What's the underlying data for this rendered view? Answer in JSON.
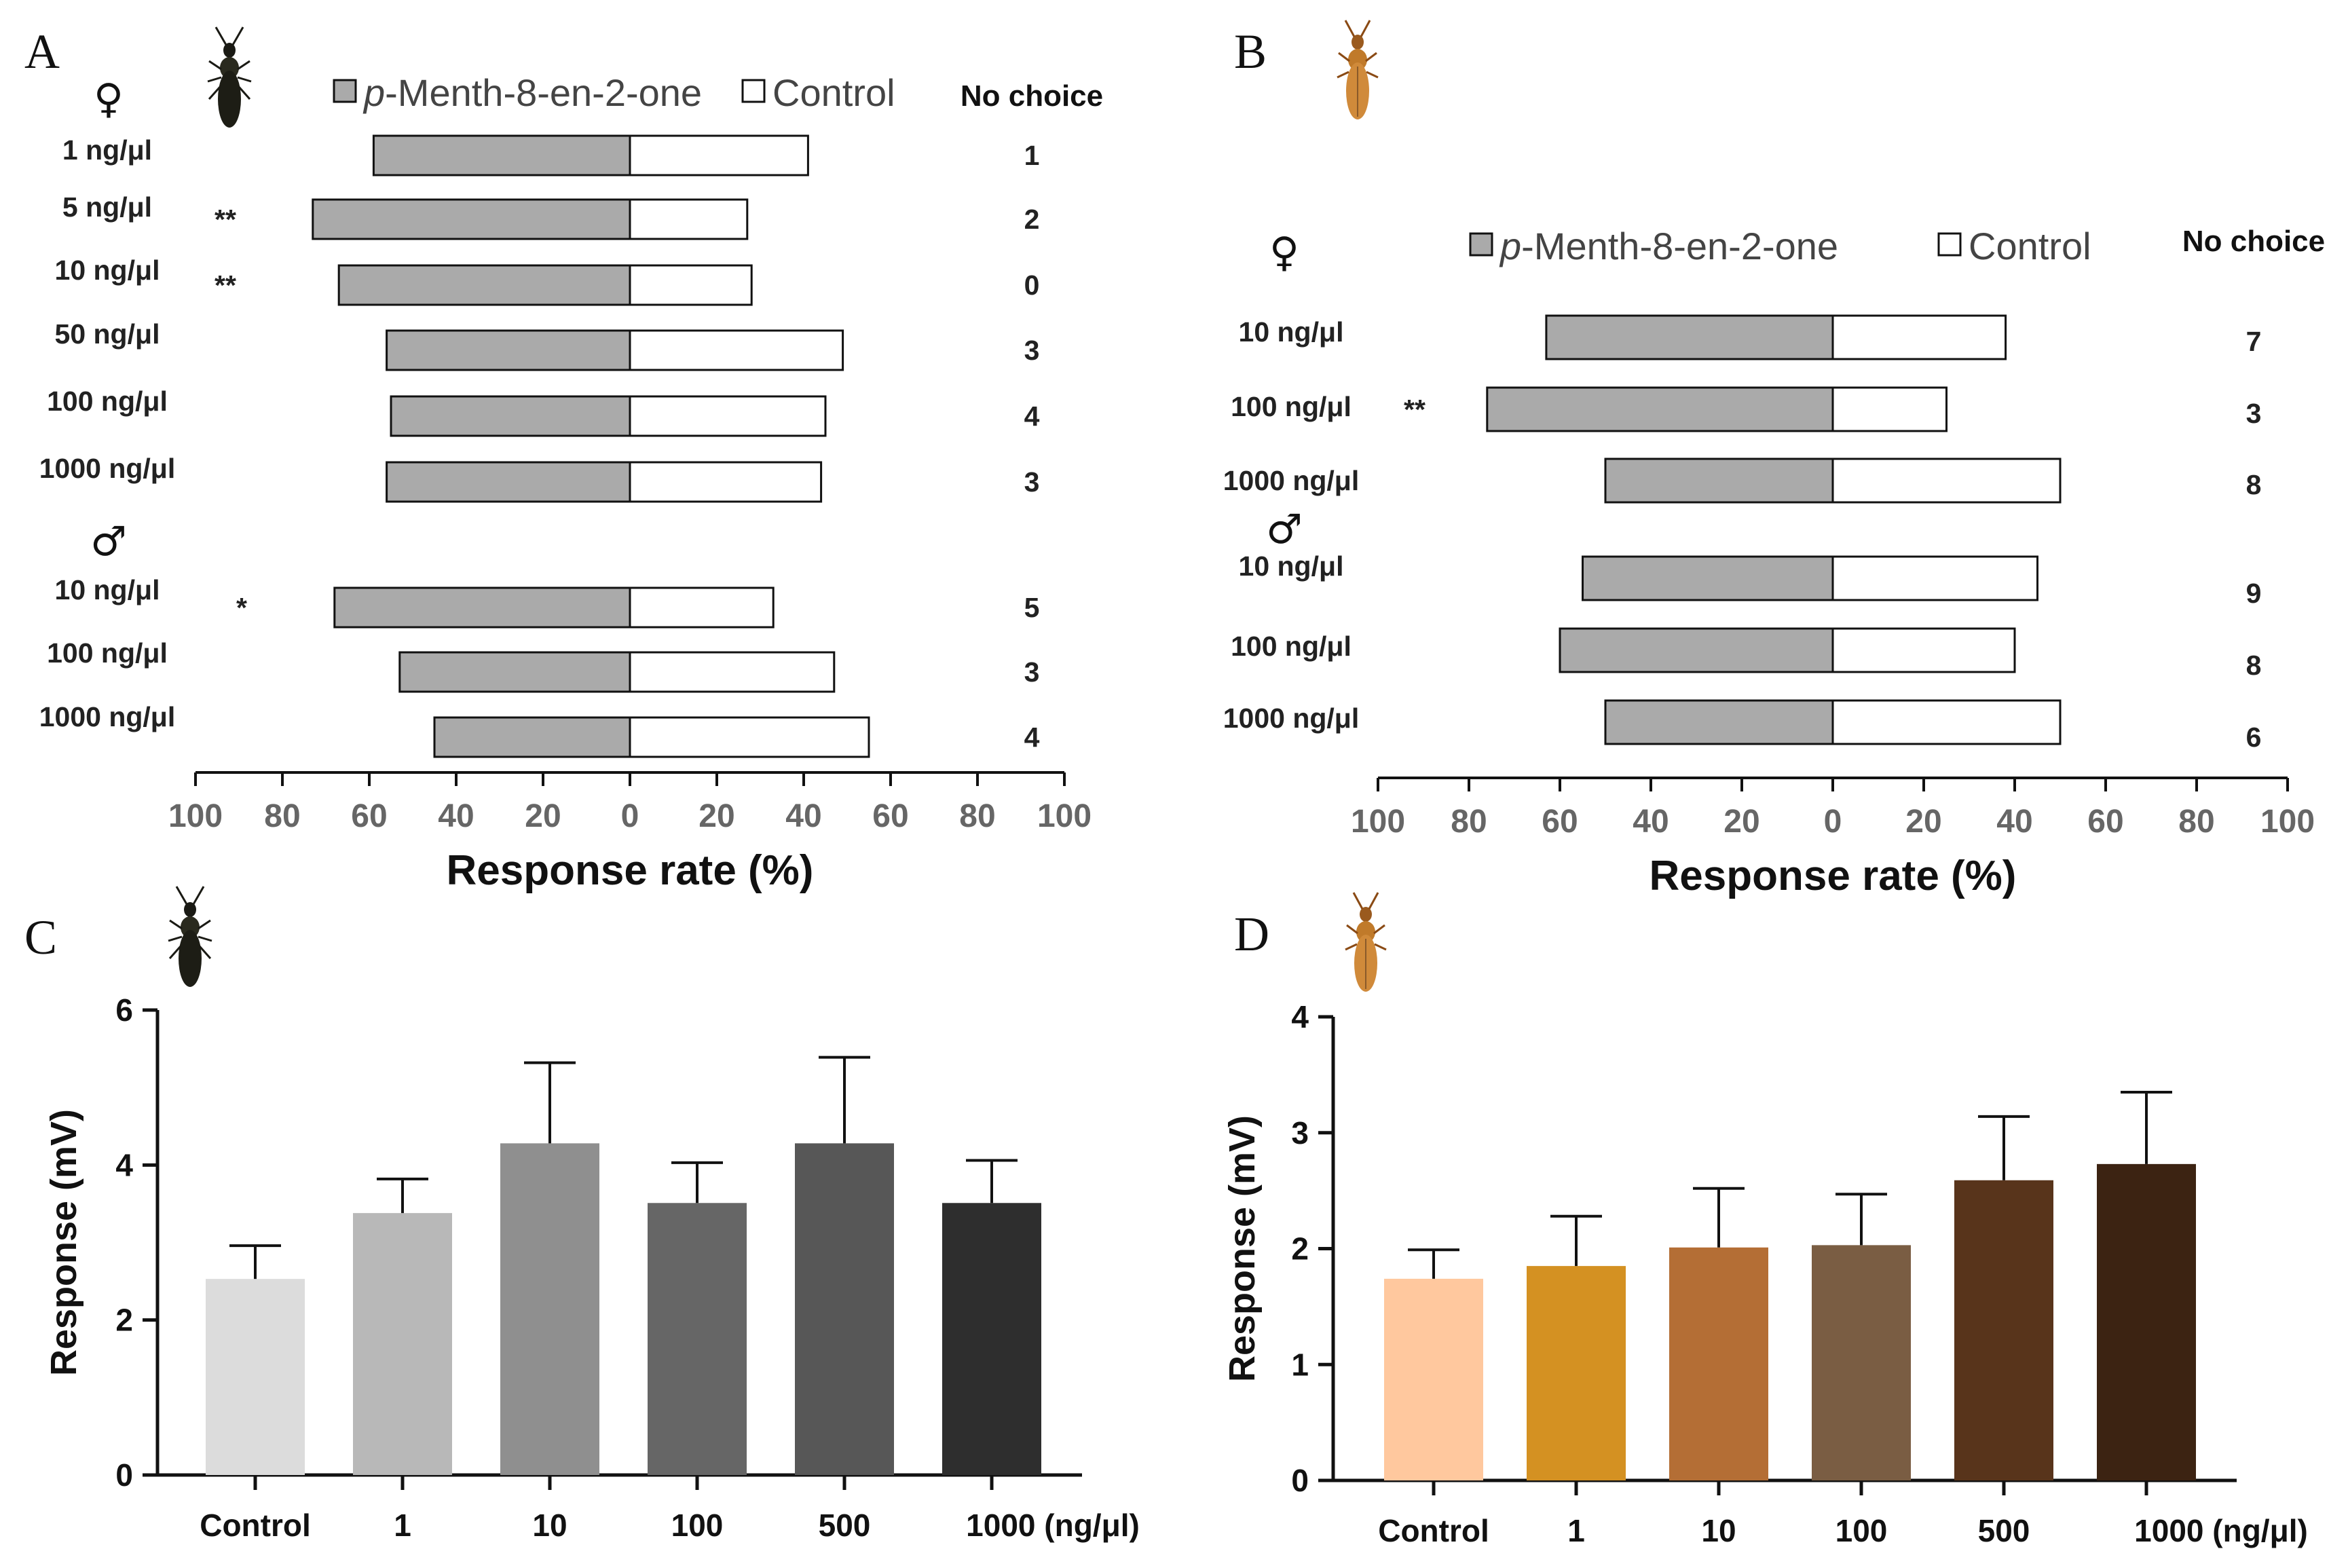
{
  "chart_data": [
    {
      "panel": "A",
      "type": "bar",
      "orientation": "horizontal-diverging",
      "legend": {
        "prefix": "p",
        "treatment": "-Menth-8-en-2-one",
        "control": "Control",
        "no_choice_header": "No choice"
      },
      "groups": [
        {
          "sex": "♀",
          "rows": [
            {
              "label": "1 ng/μl",
              "treatment": 59,
              "control": 41,
              "sig": "",
              "no_choice": "1"
            },
            {
              "label": "5 ng/μl",
              "treatment": 73,
              "control": 27,
              "sig": "**",
              "no_choice": "2"
            },
            {
              "label": "10 ng/μl",
              "treatment": 67,
              "control": 28,
              "sig": "**",
              "no_choice": "0"
            },
            {
              "label": "50 ng/μl",
              "treatment": 56,
              "control": 49,
              "sig": "",
              "no_choice": "3"
            },
            {
              "label": "100 ng/μl",
              "treatment": 55,
              "control": 45,
              "sig": "",
              "no_choice": "4"
            },
            {
              "label": "1000 ng/μl",
              "treatment": 56,
              "control": 44,
              "sig": "",
              "no_choice": "3"
            }
          ]
        },
        {
          "sex": "♂",
          "rows": [
            {
              "label": "10 ng/μl",
              "treatment": 68,
              "control": 33,
              "sig": "*",
              "no_choice": "5"
            },
            {
              "label": "100 ng/μl",
              "treatment": 53,
              "control": 47,
              "sig": "",
              "no_choice": "3"
            },
            {
              "label": "1000 ng/μl",
              "treatment": 45,
              "control": 55,
              "sig": "",
              "no_choice": "4"
            }
          ]
        }
      ],
      "ticks": [
        "100",
        "80",
        "60",
        "40",
        "20",
        "0",
        "20",
        "40",
        "60",
        "80",
        "100"
      ],
      "xlim": [
        -100,
        100
      ],
      "xlabel": "Response rate (%)"
    },
    {
      "panel": "B",
      "type": "bar",
      "orientation": "horizontal-diverging",
      "legend": {
        "prefix": "p",
        "treatment": "-Menth-8-en-2-one",
        "control": "Control",
        "no_choice_header": "No choice"
      },
      "groups": [
        {
          "sex": "♀",
          "rows": [
            {
              "label": "10 ng/μl",
              "treatment": 63,
              "control": 38,
              "sig": "",
              "no_choice": "7"
            },
            {
              "label": "100 ng/μl",
              "treatment": 76,
              "control": 25,
              "sig": "**",
              "no_choice": "3"
            },
            {
              "label": "1000 ng/μl",
              "treatment": 50,
              "control": 50,
              "sig": "",
              "no_choice": "8"
            }
          ]
        },
        {
          "sex": "♂",
          "rows": [
            {
              "label": "10 ng/μl",
              "treatment": 55,
              "control": 45,
              "sig": "",
              "no_choice": "9"
            },
            {
              "label": "100 ng/μl",
              "treatment": 60,
              "control": 40,
              "sig": "",
              "no_choice": "8"
            },
            {
              "label": "1000 ng/μl",
              "treatment": 50,
              "control": 50,
              "sig": "",
              "no_choice": "6"
            }
          ]
        }
      ],
      "ticks": [
        "100",
        "80",
        "60",
        "40",
        "20",
        "0",
        "20",
        "40",
        "60",
        "80",
        "100"
      ],
      "xlim": [
        -100,
        100
      ],
      "xlabel": "Response rate (%)"
    },
    {
      "panel": "C",
      "type": "bar",
      "categories": [
        "Control",
        "1",
        "10",
        "100",
        "500",
        "1000 (ng/μl)"
      ],
      "values": [
        2.53,
        3.38,
        4.28,
        3.51,
        4.28,
        3.51
      ],
      "errors": [
        0.43,
        0.44,
        1.04,
        0.52,
        1.11,
        0.55
      ],
      "colors": [
        "#dcdcdc",
        "#b8b8b8",
        "#8f8f8f",
        "#666666",
        "#575757",
        "#2e2e2e"
      ],
      "ylabel": "Response (mV)",
      "ylim": [
        0,
        6
      ],
      "yticks": [
        "0",
        "2",
        "4",
        "6"
      ]
    },
    {
      "panel": "D",
      "type": "bar",
      "categories": [
        "Control",
        "1",
        "10",
        "100",
        "500",
        "1000 (ng/μl)"
      ],
      "values": [
        1.74,
        1.85,
        2.01,
        2.03,
        2.59,
        2.73
      ],
      "errors": [
        0.25,
        0.43,
        0.51,
        0.44,
        0.55,
        0.62
      ],
      "colors": [
        "#ffc89e",
        "#d49122",
        "#b46e35",
        "#7a5d43",
        "#58341b",
        "#3c2312"
      ],
      "ylabel": "Response (mV)",
      "ylim": [
        0,
        4
      ],
      "yticks": [
        "0",
        "1",
        "2",
        "3",
        "4"
      ]
    }
  ]
}
